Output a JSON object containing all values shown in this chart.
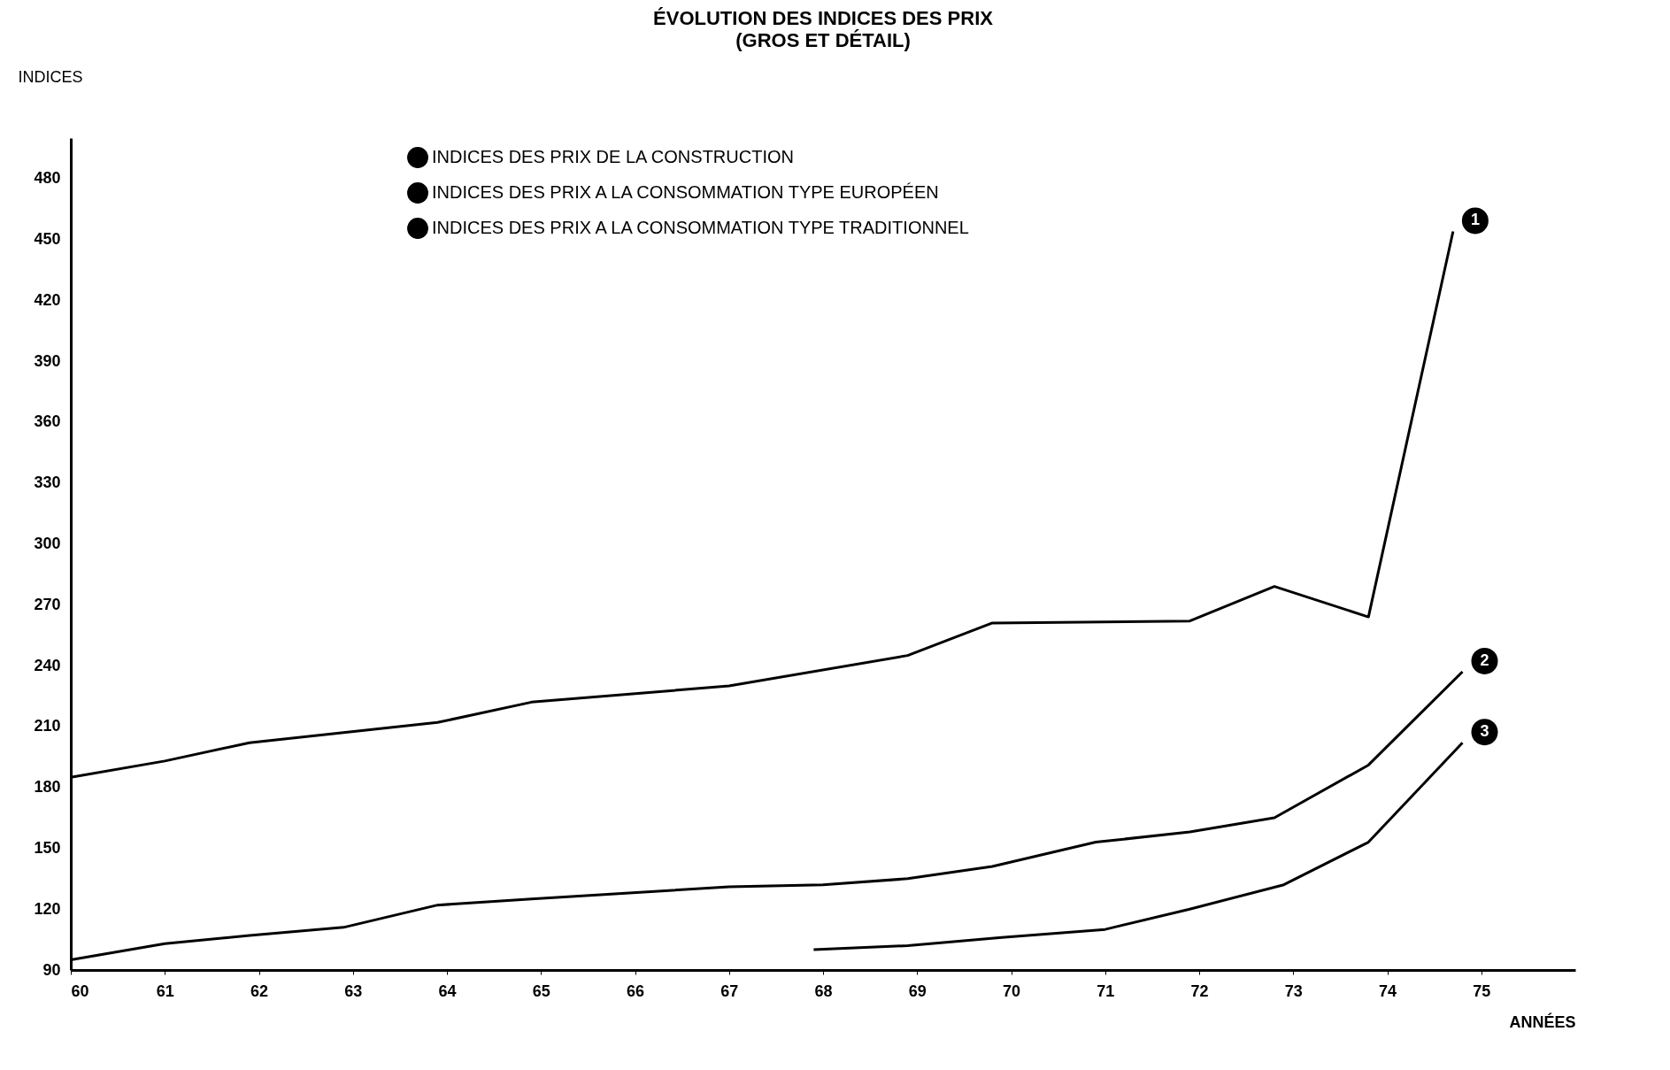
{
  "chart_data": {
    "type": "line",
    "title": "ÉVOLUTION DES INDICES DES PRIX",
    "subtitle": "(GROS ET DÉTAIL)",
    "xlabel": "ANNÉES",
    "ylabel": "INDICES",
    "xlim": [
      60,
      76
    ],
    "xticks": [
      60,
      61,
      62,
      63,
      64,
      65,
      66,
      67,
      68,
      69,
      70,
      71,
      72,
      73,
      74,
      75
    ],
    "ylim": [
      90,
      500
    ],
    "yticks": [
      90,
      120,
      150,
      180,
      210,
      240,
      270,
      300,
      330,
      360,
      390,
      420,
      450,
      480
    ],
    "grid": false,
    "legend": "top left",
    "marker": "none",
    "line_style": "solid",
    "series": [
      {
        "name": "INDICES DES PRIX DE LA CONSTRUCTION",
        "color": "#000000",
        "x": [
          60,
          61,
          61.9,
          62.9,
          63.9,
          64.9,
          67,
          68.9,
          69.8,
          71.9,
          72.8,
          73.8,
          74.7
        ],
        "values": [
          185,
          193,
          202,
          207,
          212,
          222,
          230,
          245,
          261,
          262,
          279,
          264,
          454
        ]
      },
      {
        "name": "INDICES DES PRIX A LA CONSOMMATION TYPE EUROPÉEN",
        "color": "#000000",
        "x": [
          60,
          61,
          61.9,
          62.9,
          63.9,
          64.9,
          67,
          68,
          68.9,
          69.8,
          70.9,
          71.9,
          72.8,
          73.8,
          74.8
        ],
        "values": [
          95,
          103,
          107,
          111,
          122,
          125,
          131,
          132,
          135,
          141,
          153,
          158,
          165,
          191,
          237
        ]
      },
      {
        "name": "INDICES DES PRIX A LA CONSOMMATION TYPE TRADITIONNEL",
        "color": "#000000",
        "x": [
          67.9,
          68.9,
          69.9,
          71,
          71.9,
          72.9,
          73.8,
          74.8
        ],
        "values": [
          100,
          102,
          106,
          110,
          120,
          132,
          153,
          202
        ]
      }
    ],
    "annotations": [
      "1",
      "2",
      "3"
    ]
  }
}
